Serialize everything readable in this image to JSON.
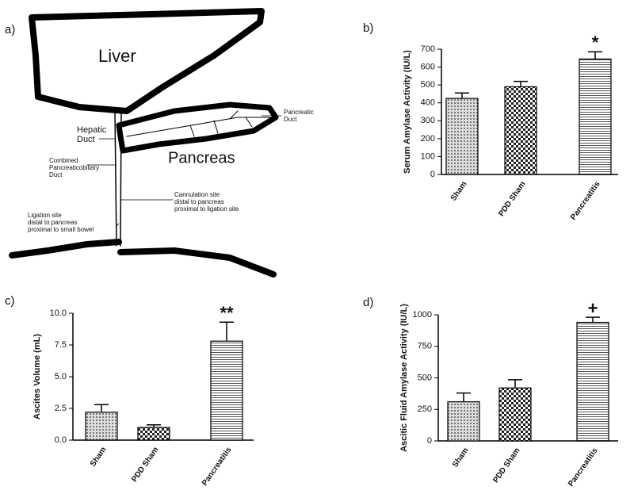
{
  "diagram": {
    "panel": "a)",
    "liver": "Liver",
    "pancreas": "Pancreas",
    "hepatic_duct": [
      "Hepatic",
      "Duct"
    ],
    "pancreatic_duct": [
      "Pancreatic",
      "Duct"
    ],
    "combined_duct": [
      "Combined",
      "Pancreaticobiliary",
      "Duct"
    ],
    "cannulation_site": [
      "Cannulation site",
      "distal to pancreas",
      "proximal to ligation site"
    ],
    "ligation_site": [
      "Ligation site",
      "distal to pancreas",
      "proximal to small bowel"
    ]
  },
  "chart_data": [
    {
      "type": "bar",
      "panel": "b)",
      "y_label": "Serum Amylase Activity (IU/L)",
      "categories": [
        "Sham",
        "PDD Sham",
        "Pancreatitis"
      ],
      "values": [
        425,
        490,
        645
      ],
      "errors": [
        30,
        30,
        40
      ],
      "annotation": "*",
      "patterns": [
        "dots",
        "checker",
        "hlines"
      ],
      "ylim": [
        0,
        700
      ],
      "yticks": [
        0,
        100,
        200,
        300,
        400,
        500,
        600,
        700
      ]
    },
    {
      "type": "bar",
      "panel": "c)",
      "y_label": "Ascites Volume (mL)",
      "categories": [
        "Sham",
        "PDD Sham",
        "Pancreatitis"
      ],
      "values": [
        2.2,
        1.0,
        7.8
      ],
      "errors": [
        0.6,
        0.2,
        1.5
      ],
      "annotation": "**",
      "patterns": [
        "dots",
        "checker",
        "hlines"
      ],
      "ylim": [
        0,
        10
      ],
      "yticks": [
        {
          "value": 0,
          "label": "0.0"
        },
        {
          "value": 2.5,
          "label": "2.5"
        },
        {
          "value": 5,
          "label": "5.0"
        },
        {
          "value": 7.5,
          "label": "7.5"
        },
        {
          "value": 10,
          "label": "10.0"
        }
      ]
    },
    {
      "type": "bar",
      "panel": "d)",
      "y_label": "Ascitic Fluid Amylase Activity (IU/L)",
      "categories": [
        "Sham",
        "PDD Sham",
        "Pancreatitis"
      ],
      "values": [
        310,
        420,
        940
      ],
      "errors": [
        70,
        65,
        40
      ],
      "annotation": "+",
      "patterns": [
        "dots",
        "checker",
        "hlines"
      ],
      "ylim": [
        0,
        1000
      ],
      "yticks": [
        0,
        250,
        500,
        750,
        1000
      ]
    }
  ]
}
